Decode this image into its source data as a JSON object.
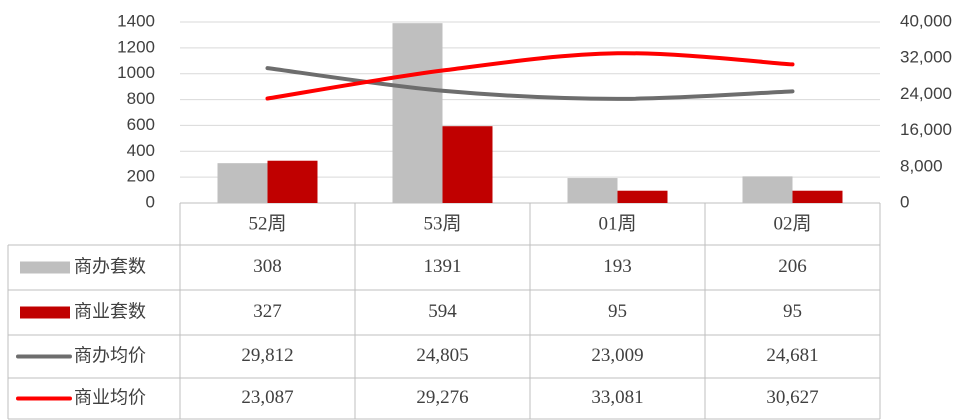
{
  "chart_data": {
    "type": "bar",
    "categories": [
      "52周",
      "53周",
      "01周",
      "02周"
    ],
    "series": [
      {
        "name": "商办套数",
        "type": "bar",
        "color": "#bfbfbf",
        "values": [
          308,
          1391,
          193,
          206
        ]
      },
      {
        "name": "商业套数",
        "type": "bar",
        "color": "#c00000",
        "values": [
          327,
          594,
          95,
          95
        ]
      },
      {
        "name": "商办均价",
        "type": "line",
        "axis": "y2",
        "color": "#6d6d6d",
        "values": [
          29812,
          24805,
          23009,
          24681
        ],
        "value_labels": [
          "29,812",
          "24,805",
          "23,009",
          "24,681"
        ]
      },
      {
        "name": "商业均价",
        "type": "line",
        "axis": "y2",
        "color": "#ff0000",
        "values": [
          23087,
          29276,
          33081,
          30627
        ],
        "value_labels": [
          "23,087",
          "29,276",
          "33,081",
          "30,627"
        ]
      }
    ],
    "ylim": [
      0,
      1400
    ],
    "yticks": [
      0,
      200,
      400,
      600,
      800,
      1000,
      1200,
      1400
    ],
    "y2lim": [
      0,
      40000
    ],
    "y2ticks": [
      0,
      {
        "value": 8000,
        "label": "8,000"
      },
      {
        "value": 16000,
        "label": "16,000"
      },
      {
        "value": 24000,
        "label": "24,000"
      },
      {
        "value": 32000,
        "label": "32,000"
      },
      {
        "value": 40000,
        "label": "40,000"
      }
    ],
    "grid": true
  }
}
